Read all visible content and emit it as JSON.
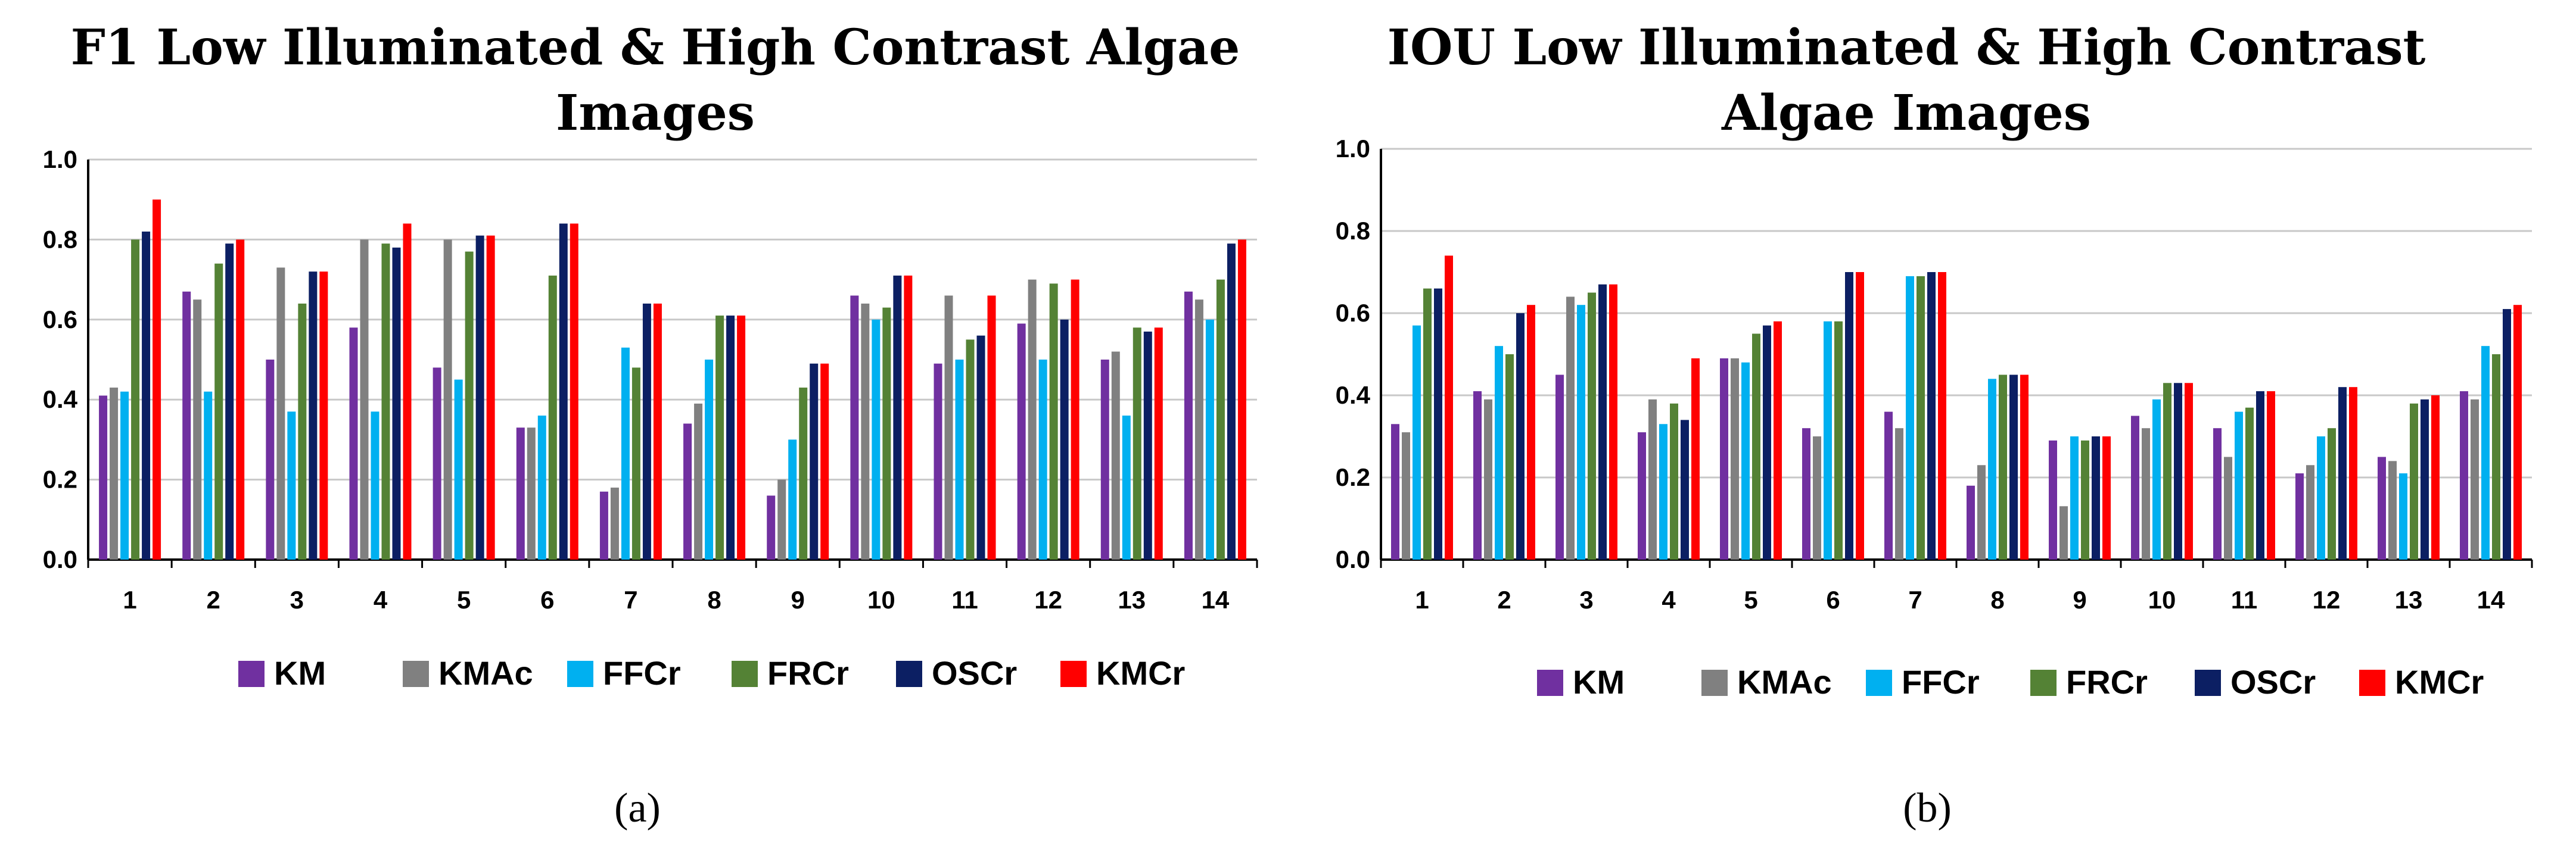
{
  "chart_data": [
    {
      "type": "bar",
      "title_lines": [
        "F1 Low Illuminated & High Contrast Algae",
        "Images"
      ],
      "caption": "(a)",
      "categories": [
        "1",
        "2",
        "3",
        "4",
        "5",
        "6",
        "7",
        "8",
        "9",
        "10",
        "11",
        "12",
        "13",
        "14"
      ],
      "ylim": [
        0,
        1.0
      ],
      "yticks": [
        "0.0",
        "0.2",
        "0.4",
        "0.6",
        "0.8",
        "1.0"
      ],
      "grid": true,
      "legend_position": "bottom",
      "series": [
        {
          "name": "KM",
          "color": "#7030a0",
          "values": [
            0.41,
            0.67,
            0.5,
            0.58,
            0.48,
            0.33,
            0.17,
            0.34,
            0.16,
            0.66,
            0.49,
            0.59,
            0.5,
            0.67
          ]
        },
        {
          "name": "KMAc",
          "color": "#808080",
          "values": [
            0.43,
            0.65,
            0.73,
            0.8,
            0.8,
            0.33,
            0.18,
            0.39,
            0.2,
            0.64,
            0.66,
            0.7,
            0.52,
            0.65
          ]
        },
        {
          "name": "FFCr",
          "color": "#00b0f0",
          "values": [
            0.42,
            0.42,
            0.37,
            0.37,
            0.45,
            0.36,
            0.53,
            0.5,
            0.3,
            0.6,
            0.5,
            0.5,
            0.36,
            0.6
          ]
        },
        {
          "name": "FRCr",
          "color": "#548235",
          "values": [
            0.8,
            0.74,
            0.64,
            0.79,
            0.77,
            0.71,
            0.48,
            0.61,
            0.43,
            0.63,
            0.55,
            0.69,
            0.58,
            0.7
          ]
        },
        {
          "name": "OSCr",
          "color": "#0c1f63",
          "values": [
            0.82,
            0.79,
            0.72,
            0.78,
            0.81,
            0.84,
            0.64,
            0.61,
            0.49,
            0.71,
            0.56,
            0.6,
            0.57,
            0.79
          ]
        },
        {
          "name": "KMCr",
          "color": "#ff0000",
          "values": [
            0.9,
            0.8,
            0.72,
            0.84,
            0.81,
            0.84,
            0.64,
            0.61,
            0.49,
            0.71,
            0.66,
            0.7,
            0.58,
            0.8
          ]
        }
      ]
    },
    {
      "type": "bar",
      "title_lines": [
        "IOU Low Illuminated & High Contrast",
        "Algae Images"
      ],
      "caption": "(b)",
      "categories": [
        "1",
        "2",
        "3",
        "4",
        "5",
        "6",
        "7",
        "8",
        "9",
        "10",
        "11",
        "12",
        "13",
        "14"
      ],
      "ylim": [
        0,
        1.0
      ],
      "yticks": [
        "0.0",
        "0.2",
        "0.4",
        "0.6",
        "0.8",
        "1.0"
      ],
      "grid": true,
      "legend_position": "bottom",
      "series": [
        {
          "name": "KM",
          "color": "#7030a0",
          "values": [
            0.33,
            0.41,
            0.45,
            0.31,
            0.49,
            0.32,
            0.36,
            0.18,
            0.29,
            0.35,
            0.32,
            0.21,
            0.25,
            0.41
          ]
        },
        {
          "name": "KMAc",
          "color": "#808080",
          "values": [
            0.31,
            0.39,
            0.64,
            0.39,
            0.49,
            0.3,
            0.32,
            0.23,
            0.13,
            0.32,
            0.25,
            0.23,
            0.24,
            0.39
          ]
        },
        {
          "name": "FFCr",
          "color": "#00b0f0",
          "values": [
            0.57,
            0.52,
            0.62,
            0.33,
            0.48,
            0.58,
            0.69,
            0.44,
            0.3,
            0.39,
            0.36,
            0.3,
            0.21,
            0.52
          ]
        },
        {
          "name": "FRCr",
          "color": "#548235",
          "values": [
            0.66,
            0.5,
            0.65,
            0.38,
            0.55,
            0.58,
            0.69,
            0.45,
            0.29,
            0.43,
            0.37,
            0.32,
            0.38,
            0.5
          ]
        },
        {
          "name": "OSCr",
          "color": "#0c1f63",
          "values": [
            0.66,
            0.6,
            0.67,
            0.34,
            0.57,
            0.7,
            0.7,
            0.45,
            0.3,
            0.43,
            0.41,
            0.42,
            0.39,
            0.61
          ]
        },
        {
          "name": "KMCr",
          "color": "#ff0000",
          "values": [
            0.74,
            0.62,
            0.67,
            0.49,
            0.58,
            0.7,
            0.7,
            0.45,
            0.3,
            0.43,
            0.41,
            0.42,
            0.4,
            0.62
          ]
        }
      ]
    }
  ]
}
